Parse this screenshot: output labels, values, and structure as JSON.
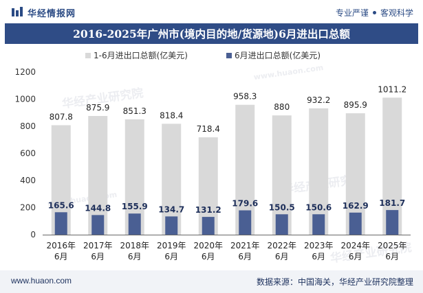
{
  "header": {
    "brand": "华经情报网",
    "tag_left": "专业严谨",
    "tag_right": "客观科学"
  },
  "title": "2016-2025年广州市(境内目的地/货源地)6月进出口总额",
  "footer": {
    "site": "www.huaon.com",
    "source": "数据来源：中国海关，华经产业研究院整理"
  },
  "colors": {
    "header_blue": "#2f4c86",
    "series1": "#d9d9d9",
    "series2": "#4a5f93"
  },
  "chart_data": {
    "type": "bar",
    "categories": [
      "2016年\n6月",
      "2017年\n6月",
      "2018年\n6月",
      "2019年\n6月",
      "2020年\n6月",
      "2021年\n6月",
      "2022年\n6月",
      "2023年\n6月",
      "2024年\n6月",
      "2025年\n6月"
    ],
    "series": [
      {
        "name": "1-6月进出口总额(亿美元)",
        "values": [
          807.8,
          875.9,
          851.3,
          818.4,
          718.4,
          958.3,
          880,
          932.2,
          895.9,
          1011.2
        ],
        "labels": [
          "807.8",
          "875.9",
          "851.3",
          "818.4",
          "718.4",
          "958.3",
          "880",
          "932.2",
          "895.9",
          "1011.2"
        ]
      },
      {
        "name": "6月进出口总额(亿美元)",
        "values": [
          165.6,
          144.8,
          155.9,
          134.7,
          131.2,
          179.6,
          150.5,
          150.6,
          162.9,
          181.7
        ],
        "labels": [
          "165.6",
          "144.8",
          "155.9",
          "134.7",
          "131.2",
          "179.6",
          "150.5",
          "150.6",
          "162.9",
          "181.7"
        ]
      }
    ],
    "yticks": [
      "0",
      "200",
      "400",
      "600",
      "800",
      "1000",
      "1200"
    ],
    "ylim": [
      0,
      1200
    ],
    "legend_position": "top-center",
    "grid": false
  },
  "watermarks": [
    "华经产业研究院",
    "www.huaon.com"
  ]
}
